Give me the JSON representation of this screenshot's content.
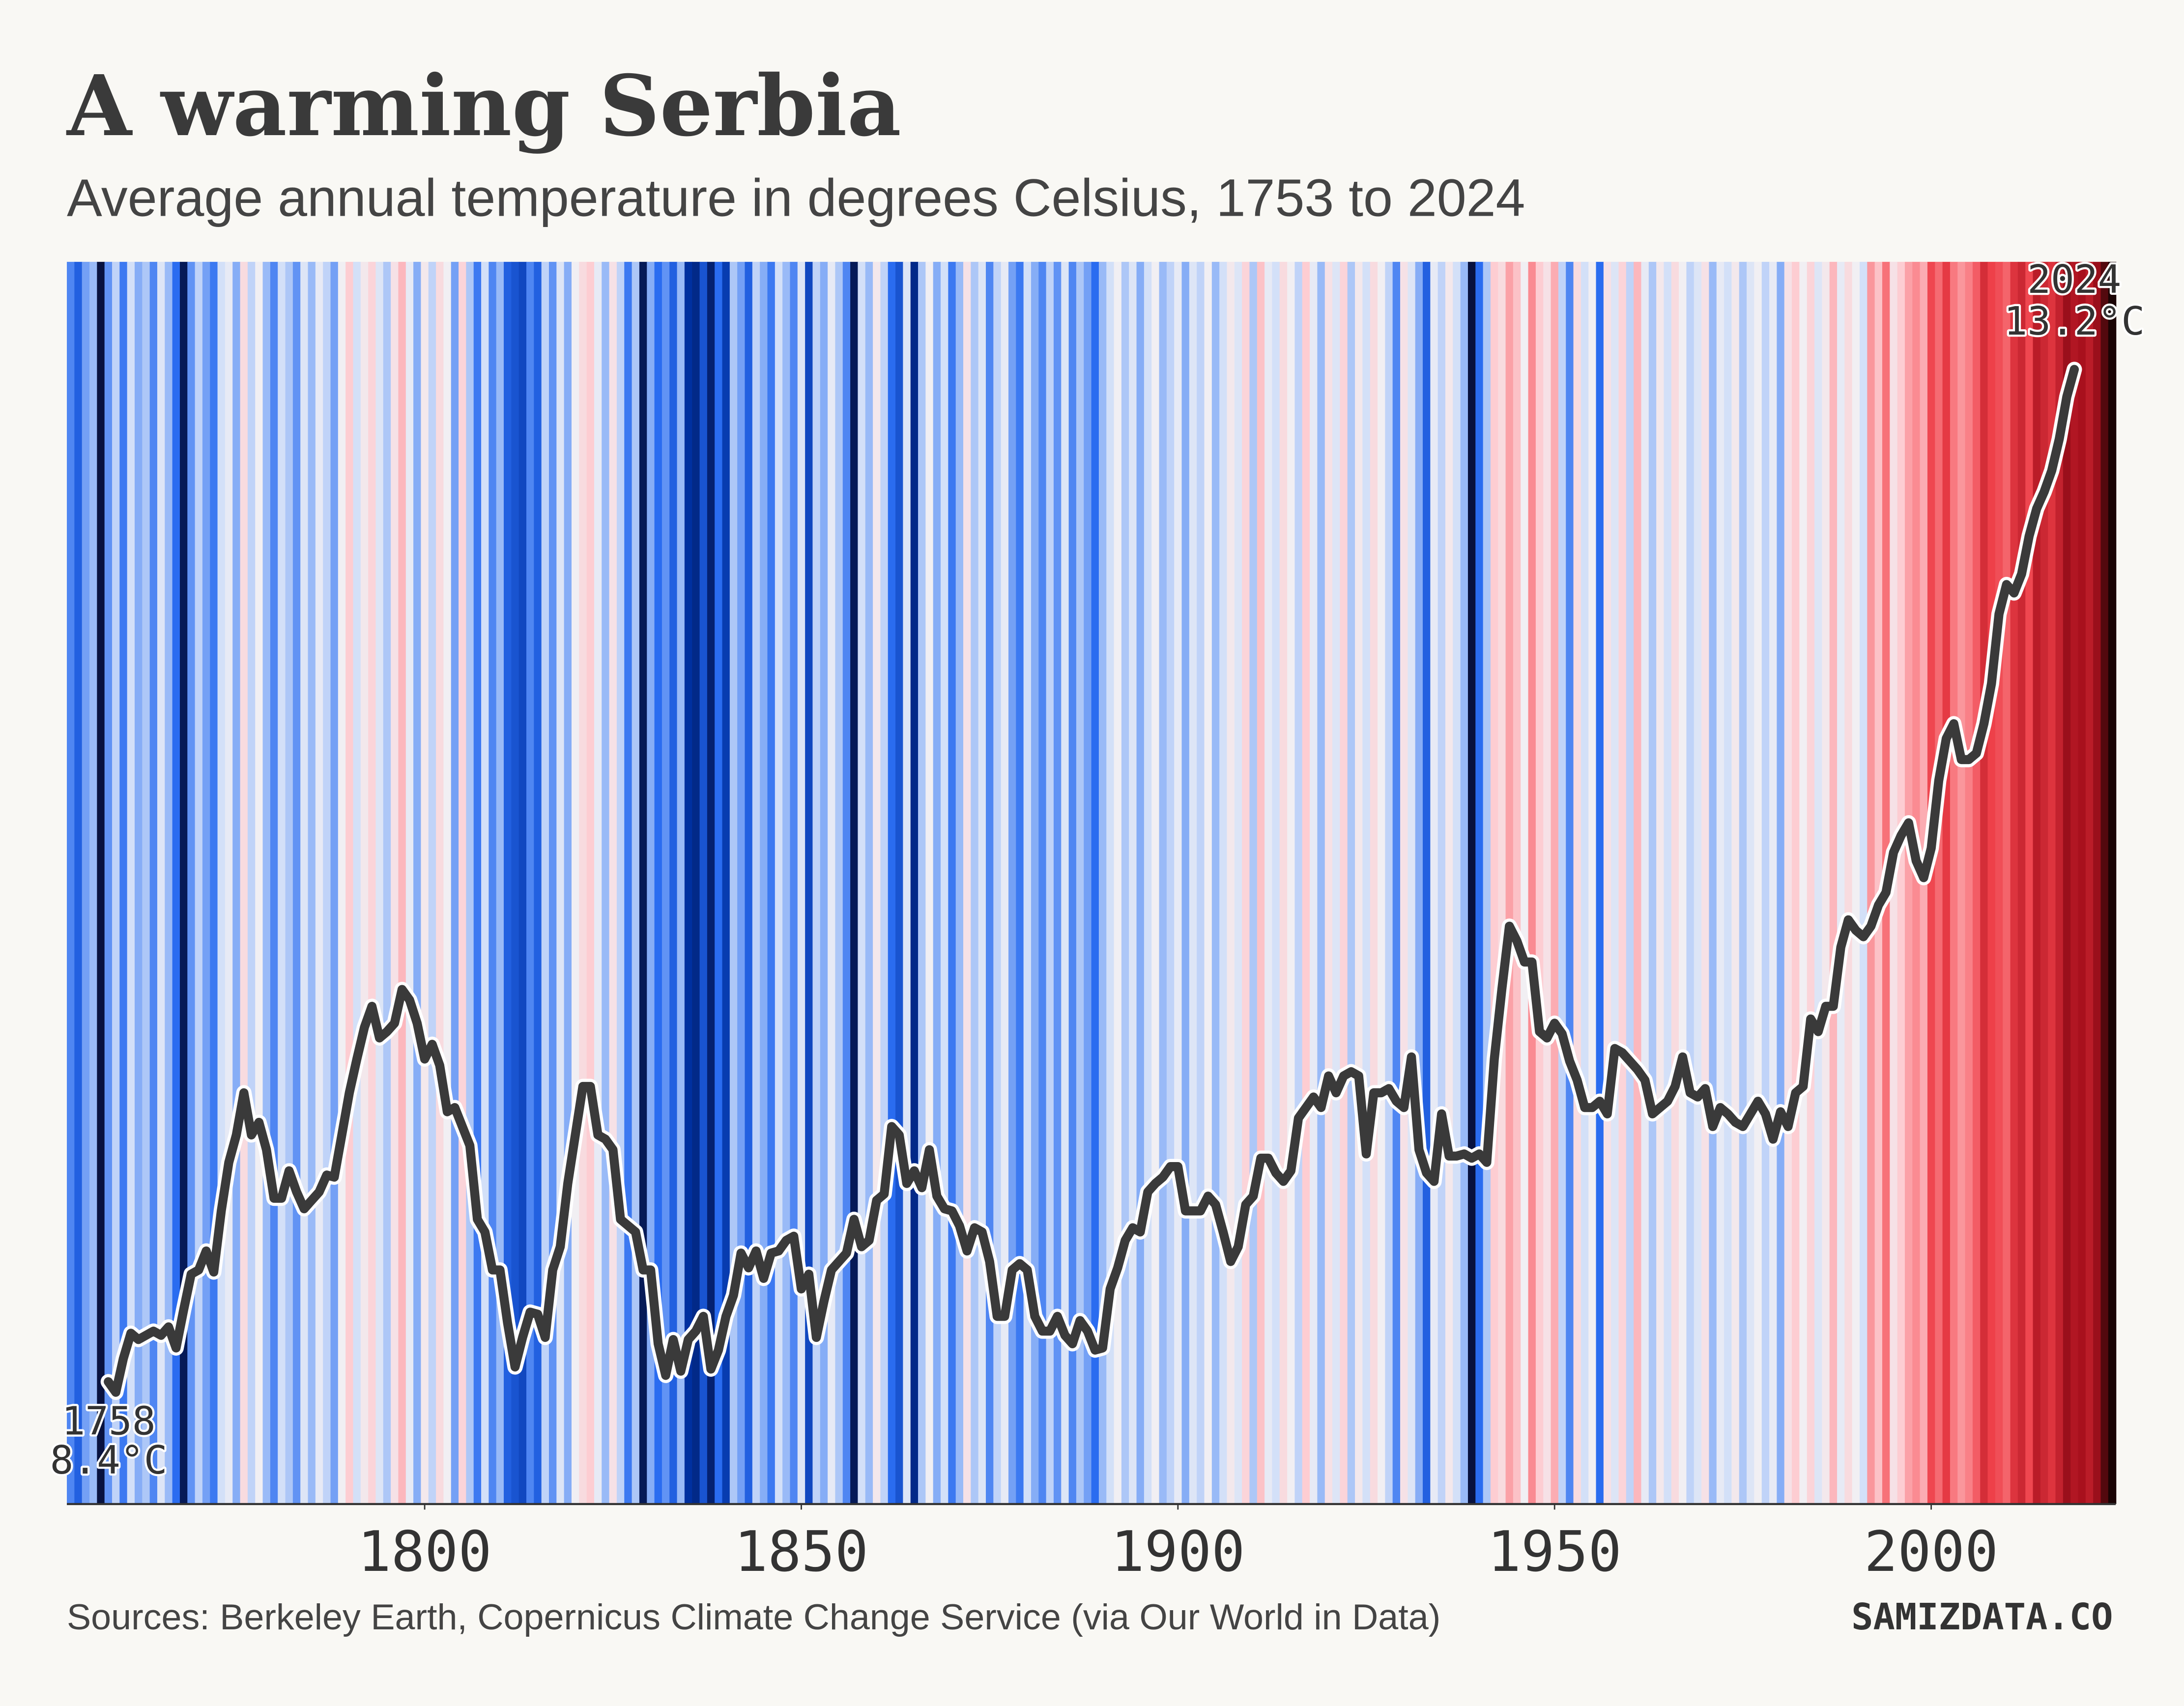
{
  "chart_data": {
    "type": "line",
    "title": "A warming Serbia",
    "subtitle": "Average annual temperature in degrees Celsius, 1753 to 2024",
    "source": "Sources: Berkeley Earth, Copernicus Climate Change Service (via Our World in Data)",
    "watermark": "SAMIZDATA.CO",
    "annotations": [
      {
        "text": "1758",
        "x": 1758,
        "y": 8.4
      },
      {
        "text": "8.4°C",
        "x": 1758,
        "y": 8.4
      },
      {
        "text": "2024",
        "x": 2019,
        "y": 13.2
      },
      {
        "text": "13.2°C",
        "x": 2019,
        "y": 13.2
      }
    ],
    "xlim": [
      1752.5,
      2024.5
    ],
    "xticks": [
      1800,
      1850,
      1900,
      1950,
      2000
    ],
    "ylim": [
      7.82,
      13.71
    ],
    "x": [
      1753,
      1754,
      1755,
      1756,
      1757,
      1758,
      1759,
      1760,
      1761,
      1762,
      1763,
      1764,
      1765,
      1766,
      1767,
      1768,
      1769,
      1770,
      1771,
      1772,
      1773,
      1774,
      1775,
      1776,
      1777,
      1778,
      1779,
      1780,
      1781,
      1782,
      1783,
      1784,
      1785,
      1786,
      1787,
      1788,
      1789,
      1790,
      1791,
      1792,
      1793,
      1794,
      1795,
      1796,
      1797,
      1798,
      1799,
      1800,
      1801,
      1802,
      1803,
      1804,
      1805,
      1806,
      1807,
      1808,
      1809,
      1810,
      1811,
      1812,
      1813,
      1814,
      1815,
      1816,
      1817,
      1818,
      1819,
      1820,
      1821,
      1822,
      1823,
      1824,
      1825,
      1826,
      1827,
      1828,
      1829,
      1830,
      1831,
      1832,
      1833,
      1834,
      1835,
      1836,
      1837,
      1838,
      1839,
      1840,
      1841,
      1842,
      1843,
      1844,
      1845,
      1846,
      1847,
      1848,
      1849,
      1850,
      1851,
      1852,
      1853,
      1854,
      1855,
      1856,
      1857,
      1858,
      1859,
      1860,
      1861,
      1862,
      1863,
      1864,
      1865,
      1866,
      1867,
      1868,
      1869,
      1870,
      1871,
      1872,
      1873,
      1874,
      1875,
      1876,
      1877,
      1878,
      1879,
      1880,
      1881,
      1882,
      1883,
      1884,
      1885,
      1886,
      1887,
      1888,
      1889,
      1890,
      1891,
      1892,
      1893,
      1894,
      1895,
      1896,
      1897,
      1898,
      1899,
      1900,
      1901,
      1902,
      1903,
      1904,
      1905,
      1906,
      1907,
      1908,
      1909,
      1910,
      1911,
      1912,
      1913,
      1914,
      1915,
      1916,
      1917,
      1918,
      1919,
      1920,
      1921,
      1922,
      1923,
      1924,
      1925,
      1926,
      1927,
      1928,
      1929,
      1930,
      1931,
      1932,
      1933,
      1934,
      1935,
      1936,
      1937,
      1938,
      1939,
      1940,
      1941,
      1942,
      1943,
      1944,
      1945,
      1946,
      1947,
      1948,
      1949,
      1950,
      1951,
      1952,
      1953,
      1954,
      1955,
      1956,
      1957,
      1958,
      1959,
      1960,
      1961,
      1962,
      1963,
      1964,
      1965,
      1966,
      1967,
      1968,
      1969,
      1970,
      1971,
      1972,
      1973,
      1974,
      1975,
      1976,
      1977,
      1978,
      1979,
      1980,
      1981,
      1982,
      1983,
      1984,
      1985,
      1986,
      1987,
      1988,
      1989,
      1990,
      1991,
      1992,
      1993,
      1994,
      1995,
      1996,
      1997,
      1998,
      1999,
      2000,
      2001,
      2002,
      2003,
      2004,
      2005,
      2006,
      2007,
      2008,
      2009,
      2010,
      2011,
      2012,
      2013,
      2014,
      2015,
      2016,
      2017,
      2018,
      2019,
      2020,
      2021,
      2022,
      2023,
      2024
    ],
    "stripes": {
      "values": [
        8.9,
        8.6,
        9.1,
        9.3,
        7.8,
        9.0,
        9.5,
        8.8,
        9.6,
        9.2,
        9.4,
        8.9,
        9.7,
        9.3,
        8.7,
        7.9,
        9.0,
        9.5,
        9.1,
        8.8,
        9.6,
        9.8,
        9.2,
        10.2,
        9.5,
        9.9,
        9.3,
        8.9,
        9.6,
        9.4,
        9.0,
        9.7,
        9.3,
        9.8,
        9.5,
        9.1,
        9.9,
        10.4,
        9.6,
        10.0,
        10.3,
        9.7,
        9.4,
        10.1,
        10.6,
        9.8,
        9.2,
        10.0,
        9.5,
        10.2,
        9.9,
        9.1,
        10.3,
        9.4,
        8.8,
        9.6,
        8.9,
        9.3,
        8.6,
        8.5,
        8.4,
        8.9,
        8.6,
        9.5,
        9.0,
        9.7,
        9.2,
        9.9,
        10.2,
        10.4,
        9.8,
        9.3,
        10.1,
        9.5,
        8.8,
        9.4,
        7.9,
        9.2,
        8.7,
        9.0,
        8.6,
        9.3,
        8.2,
        8.1,
        8.5,
        8.0,
        8.7,
        8.3,
        9.4,
        9.1,
        8.6,
        9.5,
        9.2,
        8.8,
        9.6,
        9.3,
        8.9,
        9.7,
        8.4,
        9.5,
        9.2,
        9.8,
        9.4,
        8.9,
        7.9,
        9.6,
        9.3,
        10.0,
        9.5,
        8.7,
        8.5,
        9.7,
        8.1,
        9.4,
        9.9,
        9.2,
        9.6,
        8.8,
        9.3,
        10.1,
        9.4,
        9.7,
        8.9,
        9.5,
        9.8,
        9.1,
        8.8,
        9.6,
        9.2,
        8.9,
        9.5,
        9.0,
        9.7,
        8.9,
        9.4,
        9.1,
        8.7,
        9.3,
        9.6,
        9.9,
        9.4,
        9.7,
        9.2,
        9.6,
        9.9,
        9.3,
        9.5,
        9.8,
        9.2,
        9.7,
        9.5,
        9.9,
        9.3,
        9.6,
        10.0,
        9.7,
        10.3,
        9.4,
        10.5,
        9.8,
        9.6,
        10.2,
        9.9,
        9.5,
        10.4,
        9.8,
        9.3,
        10.1,
        9.7,
        10.3,
        9.4,
        10.0,
        9.6,
        10.2,
        9.9,
        9.5,
        8.9,
        10.1,
        9.7,
        9.2,
        8.6,
        9.8,
        9.5,
        10.0,
        9.6,
        9.3,
        7.8,
        8.7,
        9.4,
        10.4,
        10.2,
        10.8,
        10.5,
        9.9,
        11.0,
        10.4,
        10.1,
        10.7,
        9.5,
        8.9,
        10.2,
        9.6,
        9.9,
        8.7,
        10.1,
        9.7,
        10.3,
        9.5,
        10.6,
        9.8,
        9.4,
        10.0,
        9.6,
        10.2,
        9.9,
        9.5,
        9.7,
        10.1,
        9.3,
        9.8,
        9.6,
        10.0,
        9.4,
        9.7,
        9.9,
        9.5,
        9.8,
        9.2,
        10.1,
        10.4,
        9.9,
        10.3,
        9.7,
        10.0,
        10.6,
        9.8,
        10.2,
        9.9,
        9.6,
        10.9,
        10.5,
        11.3,
        10.1,
        10.4,
        10.8,
        11.0,
        10.7,
        11.9,
        11.4,
        12.1,
        11.2,
        10.9,
        11.1,
        11.6,
        12.3,
        12.0,
        11.8,
        11.5,
        12.2,
        12.4,
        11.9,
        12.6,
        12.4,
        12.2,
        12.5,
        12.9,
        12.7,
        12.8,
        12.6,
        12.9,
        13.4,
        13.8
      ],
      "color_scale": [
        {
          "value": 7.8,
          "color": "#08123f"
        },
        {
          "value": 8.2,
          "color": "#0030a0"
        },
        {
          "value": 8.7,
          "color": "#2a6cf0"
        },
        {
          "value": 9.2,
          "color": "#86adf6"
        },
        {
          "value": 9.6,
          "color": "#d3e0f8"
        },
        {
          "value": 9.9,
          "color": "#f1eff3"
        },
        {
          "value": 10.4,
          "color": "#fdcdd2"
        },
        {
          "value": 11.1,
          "color": "#f98087"
        },
        {
          "value": 12.0,
          "color": "#ee4049"
        },
        {
          "value": 12.8,
          "color": "#a8101d"
        },
        {
          "value": 13.8,
          "color": "#1a0404"
        }
      ]
    },
    "series": [
      {
        "color": "#3a3a3a",
        "values": [
          null,
          null,
          null,
          null,
          null,
          8.4,
          8.35,
          8.51,
          8.63,
          8.6,
          8.62,
          8.64,
          8.62,
          8.66,
          8.56,
          8.74,
          8.91,
          8.93,
          9.02,
          8.92,
          9.21,
          9.44,
          9.57,
          9.77,
          9.57,
          9.63,
          9.5,
          9.27,
          9.27,
          9.4,
          9.3,
          9.22,
          9.26,
          9.3,
          9.38,
          9.37,
          9.57,
          9.77,
          9.93,
          10.08,
          10.18,
          10.03,
          10.06,
          10.1,
          10.26,
          10.21,
          10.1,
          9.93,
          10.0,
          9.9,
          9.68,
          9.7,
          9.61,
          9.52,
          9.17,
          9.11,
          8.93,
          8.93,
          8.68,
          8.47,
          8.61,
          8.73,
          8.72,
          8.61,
          8.93,
          9.04,
          9.34,
          9.57,
          9.8,
          9.8,
          9.57,
          9.55,
          9.5,
          9.17,
          9.14,
          9.11,
          8.93,
          8.93,
          8.58,
          8.43,
          8.6,
          8.45,
          8.6,
          8.64,
          8.71,
          8.46,
          8.55,
          8.71,
          8.81,
          9.01,
          8.94,
          9.02,
          8.89,
          9.01,
          9.02,
          9.07,
          9.09,
          8.84,
          8.91,
          8.61,
          8.78,
          8.93,
          8.97,
          9.01,
          9.17,
          9.04,
          9.07,
          9.26,
          9.29,
          9.61,
          9.57,
          9.34,
          9.4,
          9.32,
          9.5,
          9.28,
          9.22,
          9.21,
          9.14,
          9.02,
          9.13,
          9.11,
          8.97,
          8.71,
          8.71,
          8.93,
          8.96,
          8.93,
          8.71,
          8.64,
          8.64,
          8.71,
          8.62,
          8.58,
          8.69,
          8.64,
          8.55,
          8.56,
          8.84,
          8.94,
          9.07,
          9.13,
          9.11,
          9.3,
          9.34,
          9.37,
          9.42,
          9.42,
          9.21,
          9.21,
          9.21,
          9.28,
          9.24,
          9.11,
          8.97,
          9.04,
          9.24,
          9.28,
          9.46,
          9.46,
          9.39,
          9.35,
          9.4,
          9.65,
          9.7,
          9.75,
          9.7,
          9.85,
          9.77,
          9.85,
          9.87,
          9.85,
          9.48,
          9.77,
          9.77,
          9.79,
          9.73,
          9.7,
          9.94,
          9.5,
          9.39,
          9.35,
          9.67,
          9.47,
          9.47,
          9.48,
          9.46,
          9.48,
          9.44,
          9.93,
          10.26,
          10.56,
          10.49,
          10.39,
          10.39,
          10.06,
          10.03,
          10.1,
          10.05,
          9.92,
          9.83,
          9.7,
          9.7,
          9.73,
          9.67,
          9.98,
          9.96,
          9.92,
          9.88,
          9.83,
          9.67,
          9.7,
          9.73,
          9.8,
          9.94,
          9.77,
          9.75,
          9.79,
          9.61,
          9.7,
          9.67,
          9.63,
          9.61,
          9.67,
          9.73,
          9.67,
          9.55,
          9.68,
          9.61,
          9.77,
          9.8,
          10.12,
          10.06,
          10.18,
          10.18,
          10.46,
          10.59,
          10.54,
          10.51,
          10.56,
          10.66,
          10.72,
          10.91,
          10.99,
          11.05,
          10.87,
          10.79,
          10.93,
          11.25,
          11.45,
          11.52,
          11.35,
          11.35,
          11.38,
          11.52,
          11.71,
          12.04,
          12.18,
          12.14,
          12.23,
          12.41,
          12.54,
          12.62,
          12.72,
          12.87,
          13.07,
          13.2,
          null,
          null,
          null,
          null,
          null
        ]
      }
    ]
  }
}
